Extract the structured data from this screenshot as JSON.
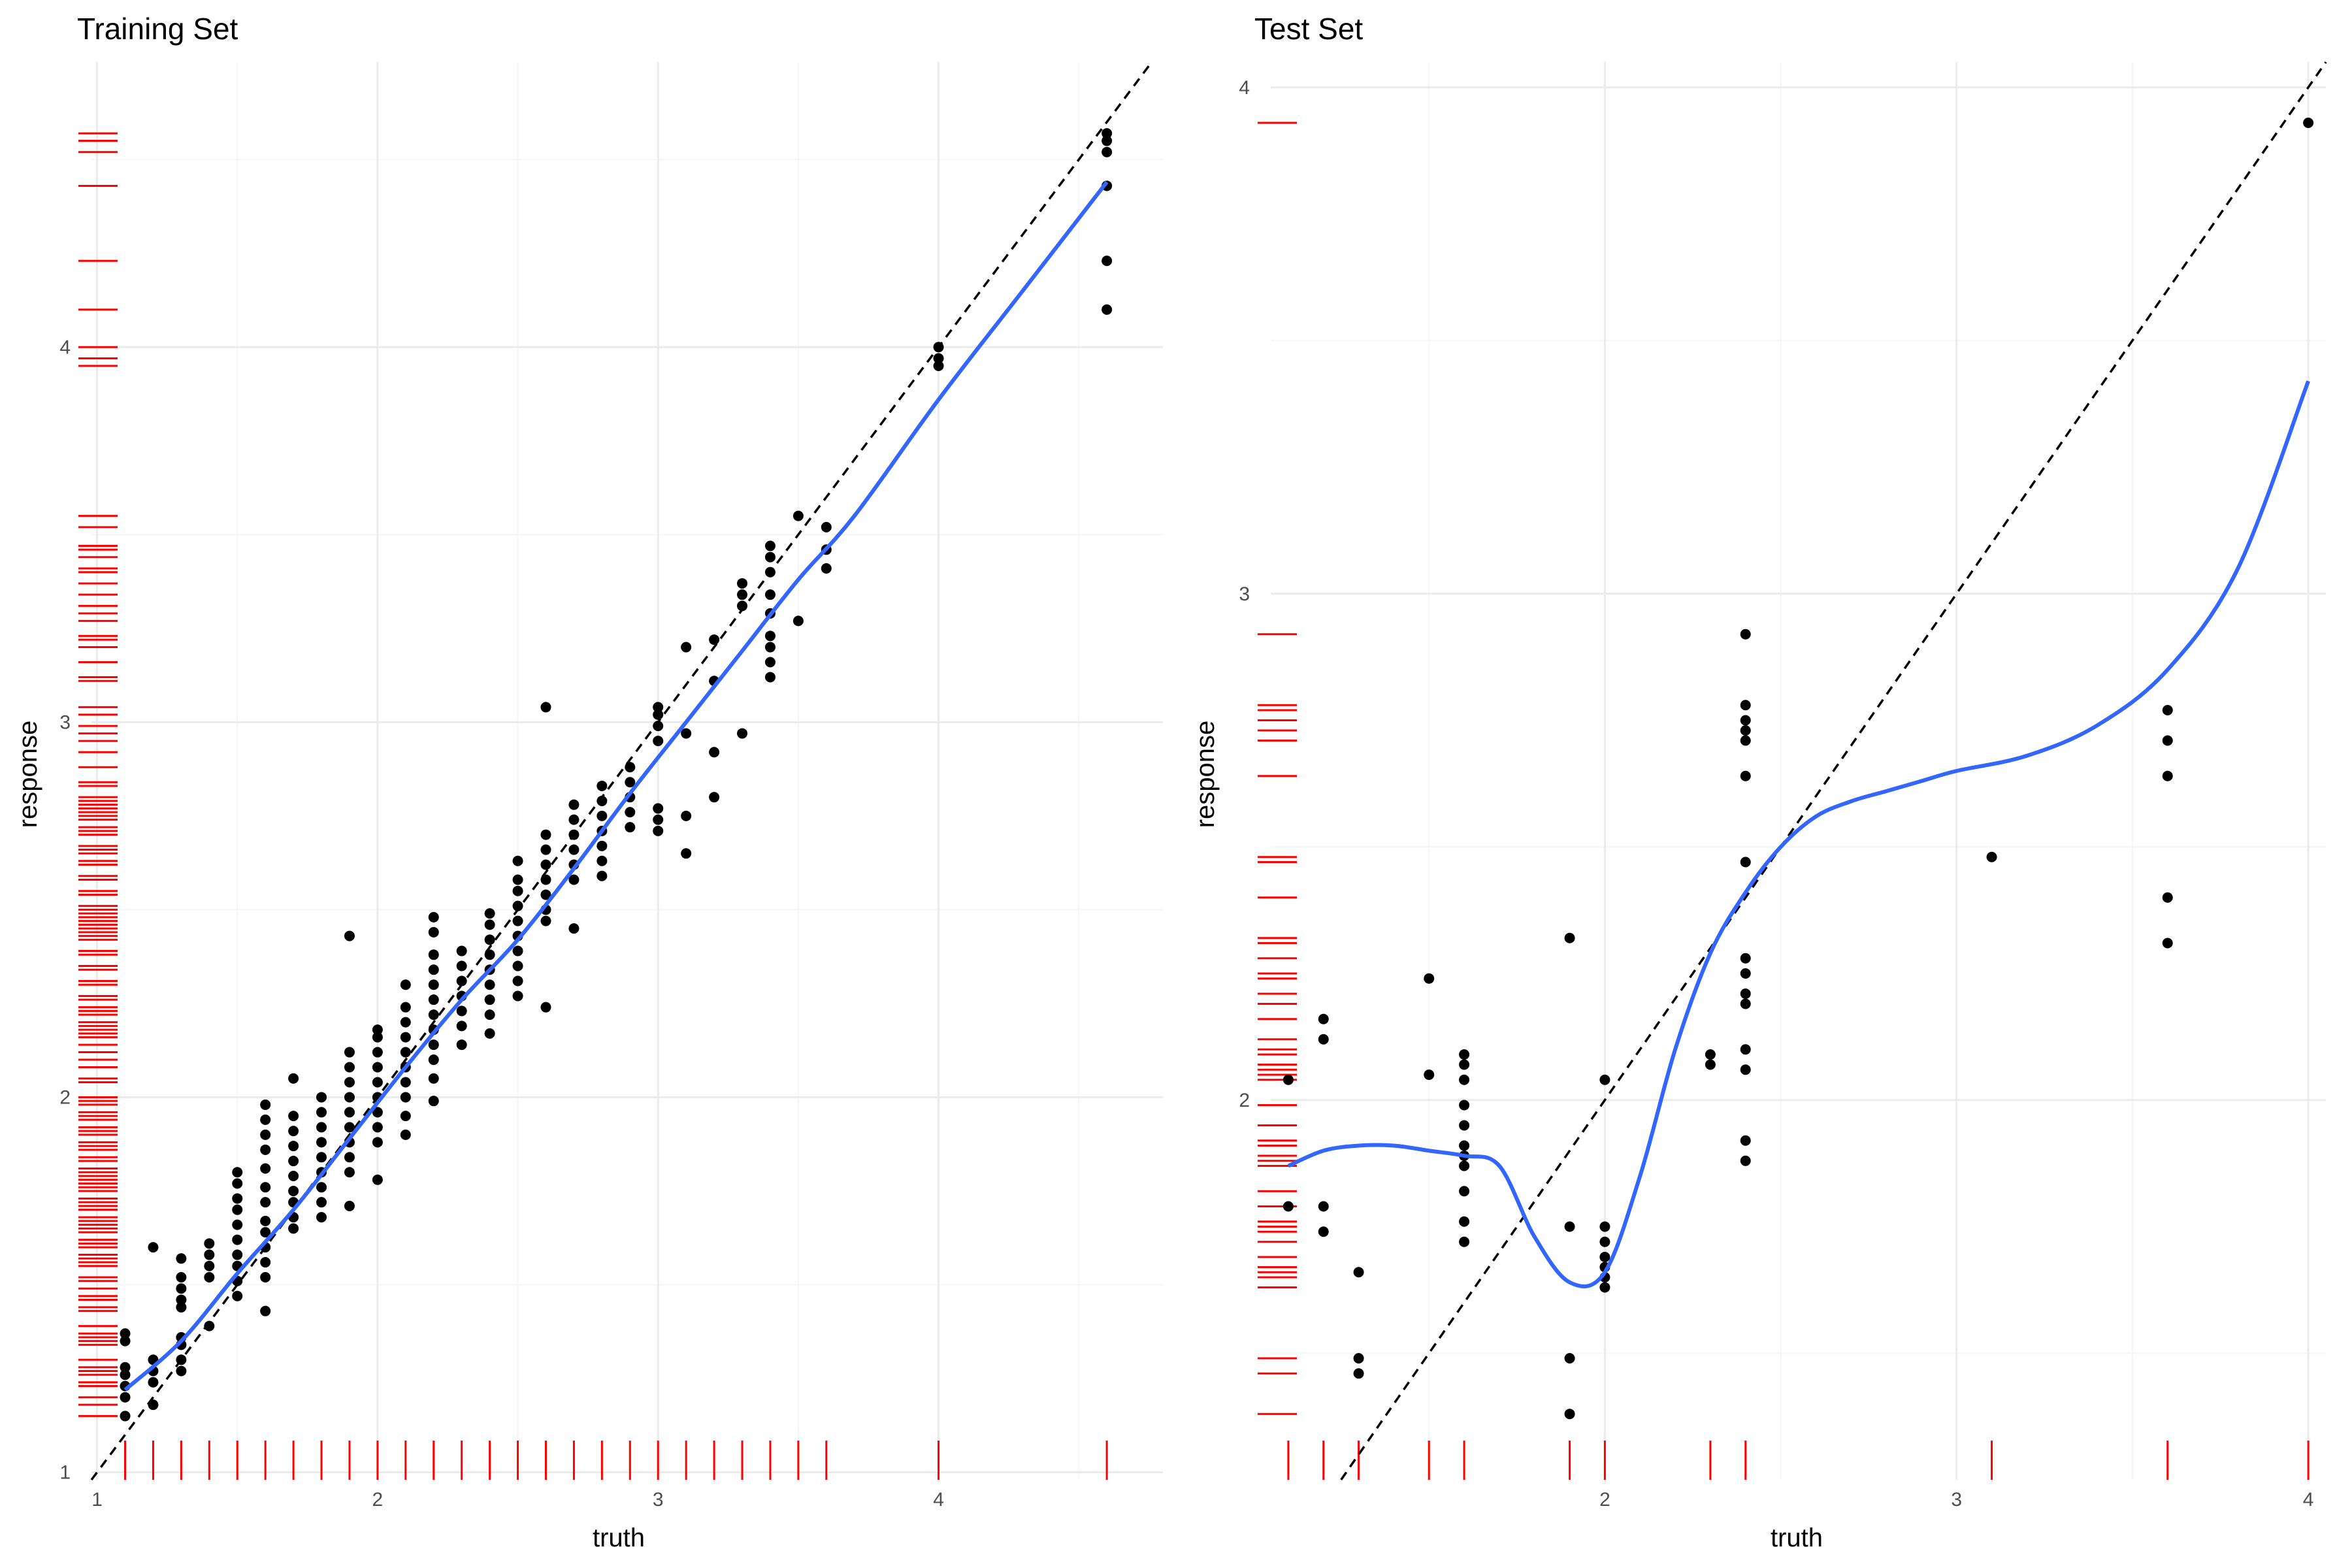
{
  "colors": {
    "points": "#000000",
    "smooth": "#3366FF",
    "rug": "#FF0000",
    "grid_major": "#EBEBEB",
    "grid_minor": "#F5F5F5",
    "identity_line": "#000000"
  },
  "chart_data": [
    {
      "type": "scatter",
      "title": "Training Set",
      "xlabel": "truth",
      "ylabel": "response",
      "xlim": [
        0.98,
        4.8
      ],
      "ylim": [
        0.98,
        4.76
      ],
      "xticks": [
        1,
        2,
        3,
        4
      ],
      "yticks": [
        1,
        2,
        3,
        4
      ],
      "grid": true,
      "identity_line": true,
      "rug": [
        "x",
        "y"
      ],
      "smooth": [
        [
          1.1,
          1.22
        ],
        [
          1.3,
          1.35
        ],
        [
          1.5,
          1.53
        ],
        [
          1.7,
          1.7
        ],
        [
          1.9,
          1.89
        ],
        [
          2.1,
          2.08
        ],
        [
          2.3,
          2.26
        ],
        [
          2.5,
          2.42
        ],
        [
          2.7,
          2.61
        ],
        [
          2.9,
          2.81
        ],
        [
          3.1,
          3.0
        ],
        [
          3.3,
          3.19
        ],
        [
          3.5,
          3.38
        ],
        [
          3.7,
          3.55
        ],
        [
          4.0,
          3.86
        ],
        [
          4.3,
          4.15
        ],
        [
          4.6,
          4.44
        ]
      ],
      "groups": [
        {
          "x": 1.1,
          "y": [
            1.15,
            1.2,
            1.23,
            1.26,
            1.28,
            1.35,
            1.37
          ]
        },
        {
          "x": 1.2,
          "y": [
            1.18,
            1.24,
            1.27,
            1.3,
            1.6
          ]
        },
        {
          "x": 1.3,
          "y": [
            1.27,
            1.3,
            1.34,
            1.36,
            1.44,
            1.46,
            1.49,
            1.52,
            1.57
          ]
        },
        {
          "x": 1.4,
          "y": [
            1.39,
            1.52,
            1.55,
            1.58,
            1.61
          ]
        },
        {
          "x": 1.5,
          "y": [
            1.47,
            1.51,
            1.55,
            1.58,
            1.62,
            1.66,
            1.7,
            1.73,
            1.77,
            1.8
          ]
        },
        {
          "x": 1.6,
          "y": [
            1.43,
            1.52,
            1.56,
            1.6,
            1.64,
            1.67,
            1.72,
            1.76,
            1.81,
            1.86,
            1.9,
            1.94,
            1.98
          ]
        },
        {
          "x": 1.7,
          "y": [
            1.65,
            1.68,
            1.72,
            1.75,
            1.79,
            1.83,
            1.87,
            1.91,
            1.95,
            2.05
          ]
        },
        {
          "x": 1.8,
          "y": [
            1.68,
            1.72,
            1.76,
            1.8,
            1.84,
            1.88,
            1.92,
            1.96,
            2.0
          ]
        },
        {
          "x": 1.9,
          "y": [
            1.71,
            1.8,
            1.84,
            1.88,
            1.92,
            1.96,
            2.0,
            2.04,
            2.08,
            2.12,
            2.43
          ]
        },
        {
          "x": 2.0,
          "y": [
            1.78,
            1.88,
            1.92,
            1.96,
            2.0,
            2.04,
            2.08,
            2.12,
            2.16,
            2.18
          ]
        },
        {
          "x": 2.1,
          "y": [
            1.9,
            1.95,
            2.0,
            2.04,
            2.08,
            2.12,
            2.16,
            2.2,
            2.24,
            2.3
          ]
        },
        {
          "x": 2.2,
          "y": [
            1.99,
            2.05,
            2.1,
            2.14,
            2.18,
            2.22,
            2.26,
            2.3,
            2.34,
            2.38,
            2.44,
            2.48
          ]
        },
        {
          "x": 2.3,
          "y": [
            2.14,
            2.19,
            2.23,
            2.27,
            2.31,
            2.35,
            2.39
          ]
        },
        {
          "x": 2.4,
          "y": [
            2.17,
            2.22,
            2.26,
            2.3,
            2.34,
            2.38,
            2.42,
            2.46,
            2.49
          ]
        },
        {
          "x": 2.5,
          "y": [
            2.27,
            2.31,
            2.35,
            2.39,
            2.43,
            2.47,
            2.51,
            2.55,
            2.58,
            2.63
          ]
        },
        {
          "x": 2.6,
          "y": [
            2.24,
            2.47,
            2.5,
            2.54,
            2.58,
            2.62,
            2.66,
            2.7,
            3.04
          ]
        },
        {
          "x": 2.7,
          "y": [
            2.45,
            2.58,
            2.62,
            2.66,
            2.7,
            2.74,
            2.78
          ]
        },
        {
          "x": 2.8,
          "y": [
            2.59,
            2.63,
            2.67,
            2.71,
            2.75,
            2.79,
            2.83
          ]
        },
        {
          "x": 2.9,
          "y": [
            2.72,
            2.76,
            2.8,
            2.84,
            2.88
          ]
        },
        {
          "x": 3.0,
          "y": [
            2.71,
            2.74,
            2.77,
            2.95,
            2.99,
            3.02,
            3.04
          ]
        },
        {
          "x": 3.1,
          "y": [
            2.65,
            2.75,
            2.97,
            3.2
          ]
        },
        {
          "x": 3.2,
          "y": [
            2.8,
            2.92,
            3.11,
            3.22
          ]
        },
        {
          "x": 3.3,
          "y": [
            2.97,
            3.31,
            3.34,
            3.37
          ]
        },
        {
          "x": 3.4,
          "y": [
            3.12,
            3.16,
            3.2,
            3.23,
            3.29,
            3.34,
            3.4,
            3.44,
            3.47
          ]
        },
        {
          "x": 3.5,
          "y": [
            3.27,
            3.55
          ]
        },
        {
          "x": 3.6,
          "y": [
            3.41,
            3.46,
            3.52
          ]
        },
        {
          "x": 4.0,
          "y": [
            3.95,
            3.97,
            4.0
          ]
        },
        {
          "x": 4.6,
          "y": [
            4.1,
            4.23,
            4.43,
            4.52,
            4.55,
            4.57
          ]
        }
      ]
    },
    {
      "type": "scatter",
      "title": "Test Set",
      "xlabel": "truth",
      "ylabel": "response",
      "xlim": [
        1.05,
        4.05
      ],
      "ylim": [
        1.25,
        4.05
      ],
      "xticks": [
        2,
        3,
        4
      ],
      "yticks": [
        2,
        3,
        4
      ],
      "grid": true,
      "identity_line": true,
      "rug": [
        "x",
        "y"
      ],
      "smooth": [
        [
          1.1,
          1.87
        ],
        [
          1.2,
          1.9
        ],
        [
          1.3,
          1.91
        ],
        [
          1.4,
          1.91
        ],
        [
          1.5,
          1.9
        ],
        [
          1.6,
          1.89
        ],
        [
          1.7,
          1.87
        ],
        [
          1.8,
          1.73
        ],
        [
          1.9,
          1.64
        ],
        [
          2.0,
          1.66
        ],
        [
          2.1,
          1.85
        ],
        [
          2.2,
          2.1
        ],
        [
          2.3,
          2.29
        ],
        [
          2.4,
          2.41
        ],
        [
          2.5,
          2.5
        ],
        [
          2.6,
          2.56
        ],
        [
          2.7,
          2.59
        ],
        [
          2.8,
          2.61
        ],
        [
          2.9,
          2.63
        ],
        [
          3.0,
          2.65
        ],
        [
          3.2,
          2.68
        ],
        [
          3.4,
          2.74
        ],
        [
          3.6,
          2.85
        ],
        [
          3.8,
          3.05
        ],
        [
          4.0,
          3.42
        ]
      ],
      "points": [
        [
          1.1,
          2.04
        ],
        [
          1.1,
          1.79
        ],
        [
          1.2,
          2.16
        ],
        [
          1.2,
          2.12
        ],
        [
          1.2,
          1.79
        ],
        [
          1.2,
          1.74
        ],
        [
          1.3,
          1.66
        ],
        [
          1.3,
          1.49
        ],
        [
          1.3,
          1.46
        ],
        [
          1.5,
          2.24
        ],
        [
          1.5,
          2.05
        ],
        [
          1.6,
          2.09
        ],
        [
          1.6,
          2.07
        ],
        [
          1.6,
          2.04
        ],
        [
          1.6,
          1.99
        ],
        [
          1.6,
          1.95
        ],
        [
          1.6,
          1.91
        ],
        [
          1.6,
          1.89
        ],
        [
          1.6,
          1.87
        ],
        [
          1.6,
          1.82
        ],
        [
          1.6,
          1.76
        ],
        [
          1.6,
          1.72
        ],
        [
          1.9,
          2.32
        ],
        [
          1.9,
          1.75
        ],
        [
          1.9,
          1.49
        ],
        [
          1.9,
          1.38
        ],
        [
          2.0,
          2.04
        ],
        [
          2.0,
          1.75
        ],
        [
          2.0,
          1.72
        ],
        [
          2.0,
          1.69
        ],
        [
          2.0,
          1.67
        ],
        [
          2.0,
          1.65
        ],
        [
          2.0,
          1.63
        ],
        [
          2.3,
          2.09
        ],
        [
          2.3,
          2.07
        ],
        [
          2.4,
          2.92
        ],
        [
          2.4,
          2.78
        ],
        [
          2.4,
          2.75
        ],
        [
          2.4,
          2.73
        ],
        [
          2.4,
          2.71
        ],
        [
          2.4,
          2.64
        ],
        [
          2.4,
          2.47
        ],
        [
          2.4,
          2.28
        ],
        [
          2.4,
          2.25
        ],
        [
          2.4,
          2.21
        ],
        [
          2.4,
          2.19
        ],
        [
          2.4,
          2.1
        ],
        [
          2.4,
          2.06
        ],
        [
          2.4,
          1.92
        ],
        [
          2.4,
          1.88
        ],
        [
          3.1,
          2.48
        ],
        [
          3.6,
          2.77
        ],
        [
          3.6,
          2.71
        ],
        [
          3.6,
          2.64
        ],
        [
          3.6,
          2.4
        ],
        [
          3.6,
          2.31
        ],
        [
          4.0,
          3.93
        ]
      ]
    }
  ]
}
